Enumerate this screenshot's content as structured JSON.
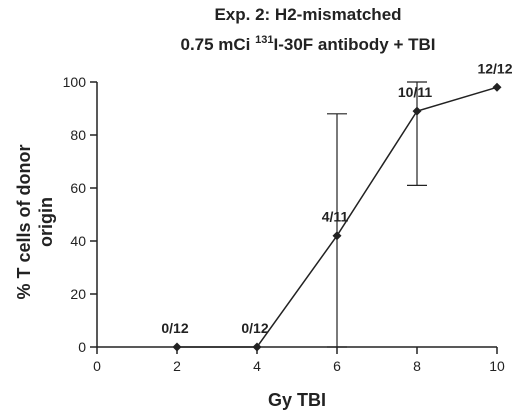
{
  "chart_data": {
    "type": "line",
    "title_line1": "Exp. 2:  H2-mismatched",
    "title_line2_pre": "0.75 mCi ",
    "title_line2_sup": "131",
    "title_line2_post": "I-30F antibody + TBI",
    "xlabel": "Gy TBI",
    "ylabel_line1": "% T cells of donor",
    "ylabel_line2": "origin",
    "xlim": [
      0,
      10
    ],
    "ylim": [
      0,
      100
    ],
    "x_ticks": [
      0,
      2,
      4,
      6,
      8,
      10
    ],
    "y_ticks": [
      0,
      20,
      40,
      60,
      80,
      100
    ],
    "points": [
      {
        "x": 2,
        "y": 0,
        "label": "0/12"
      },
      {
        "x": 4,
        "y": 0,
        "label": "0/12"
      },
      {
        "x": 6,
        "y": 42,
        "label": "4/11",
        "err_low": 0,
        "err_high": 88
      },
      {
        "x": 8,
        "y": 89,
        "label": "10/11",
        "err_low": 61,
        "err_high": 100
      },
      {
        "x": 10,
        "y": 98,
        "label": "12/12"
      }
    ]
  }
}
